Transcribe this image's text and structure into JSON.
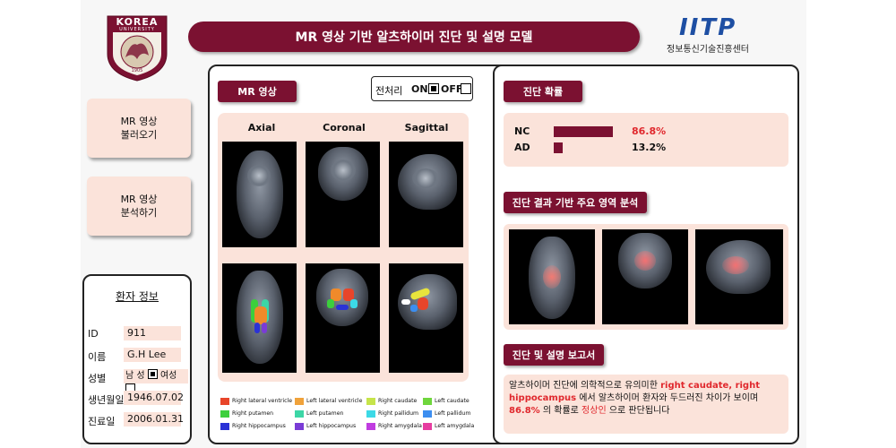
{
  "header": {
    "university_name": "KOREA",
    "university_sub": "UNIVERSITY",
    "university_year": "1905",
    "title": "MR 영상 기반 알츠하이머 진단 및 설명 모델",
    "sponsor_logo_text": "IITP",
    "sponsor_name": "정보통신기술진흥센터"
  },
  "sidebar": {
    "load_button": {
      "line1": "MR 영상",
      "line2": "불러오기"
    },
    "analyze_button": {
      "line1": "MR 영상",
      "line2": "분석하기"
    }
  },
  "patient": {
    "title": "환자 정보",
    "id_label": "ID",
    "id_value": "911",
    "name_label": "이름",
    "name_value": "G.H Lee",
    "sex_label": "성별",
    "sex_male": "남 성",
    "sex_female": "여성",
    "sex_selected": "male",
    "dob_label": "생년월일",
    "dob_value": "1946.07.02",
    "visit_label": "진료일",
    "visit_value": "2006.01.31"
  },
  "mr_panel": {
    "title": "MR 영상",
    "preprocess_label": "전처리",
    "on_label": "ON",
    "off_label": "OFF",
    "preprocess_on": true,
    "views": [
      "Axial",
      "Coronal",
      "Sagittal"
    ],
    "legend": [
      {
        "label": "Right lateral ventricle",
        "color": "#e8452a"
      },
      {
        "label": "Left lateral ventricle",
        "color": "#f0a23a"
      },
      {
        "label": "Right caudate",
        "color": "#c6e44a"
      },
      {
        "label": "Left caudate",
        "color": "#6fd63c"
      },
      {
        "label": "Right putamen",
        "color": "#3ccf3c"
      },
      {
        "label": "Left putamen",
        "color": "#3cd6a6"
      },
      {
        "label": "Right pallidum",
        "color": "#3cd9e6"
      },
      {
        "label": "Left pallidum",
        "color": "#3c8ef0"
      },
      {
        "label": "Right hippocampus",
        "color": "#2b32d6"
      },
      {
        "label": "Left hippocampus",
        "color": "#7a3cd6"
      },
      {
        "label": "Right amygdala",
        "color": "#c03ce0"
      },
      {
        "label": "Left amygdala",
        "color": "#e63ca0"
      }
    ]
  },
  "diagnosis": {
    "title": "진단 확률",
    "rows": [
      {
        "label": "NC",
        "percent": "86.8%",
        "value": 0.868
      },
      {
        "label": "AD",
        "percent": "13.2%",
        "value": 0.132
      }
    ]
  },
  "analysis": {
    "title": "진단 결과 기반 주요 영역 분석"
  },
  "report": {
    "title": "진단 및 설명 보고서",
    "part1": "알츠하이머 진단에 의학적으로 유의미한 ",
    "highlight1": "right caudate, right hippocampus",
    "part2": " 에서 알츠하이머 환자와 두드러진 차이가 보이며 ",
    "highlight2": "86.8%",
    "part3": " 의 확률로 ",
    "highlight3": "정상인",
    "part4": " 으로 판단됩니다"
  },
  "colors": {
    "brand": "#7b1131",
    "highlight": "#e0282d",
    "panel_bg": "#fbe3da"
  }
}
